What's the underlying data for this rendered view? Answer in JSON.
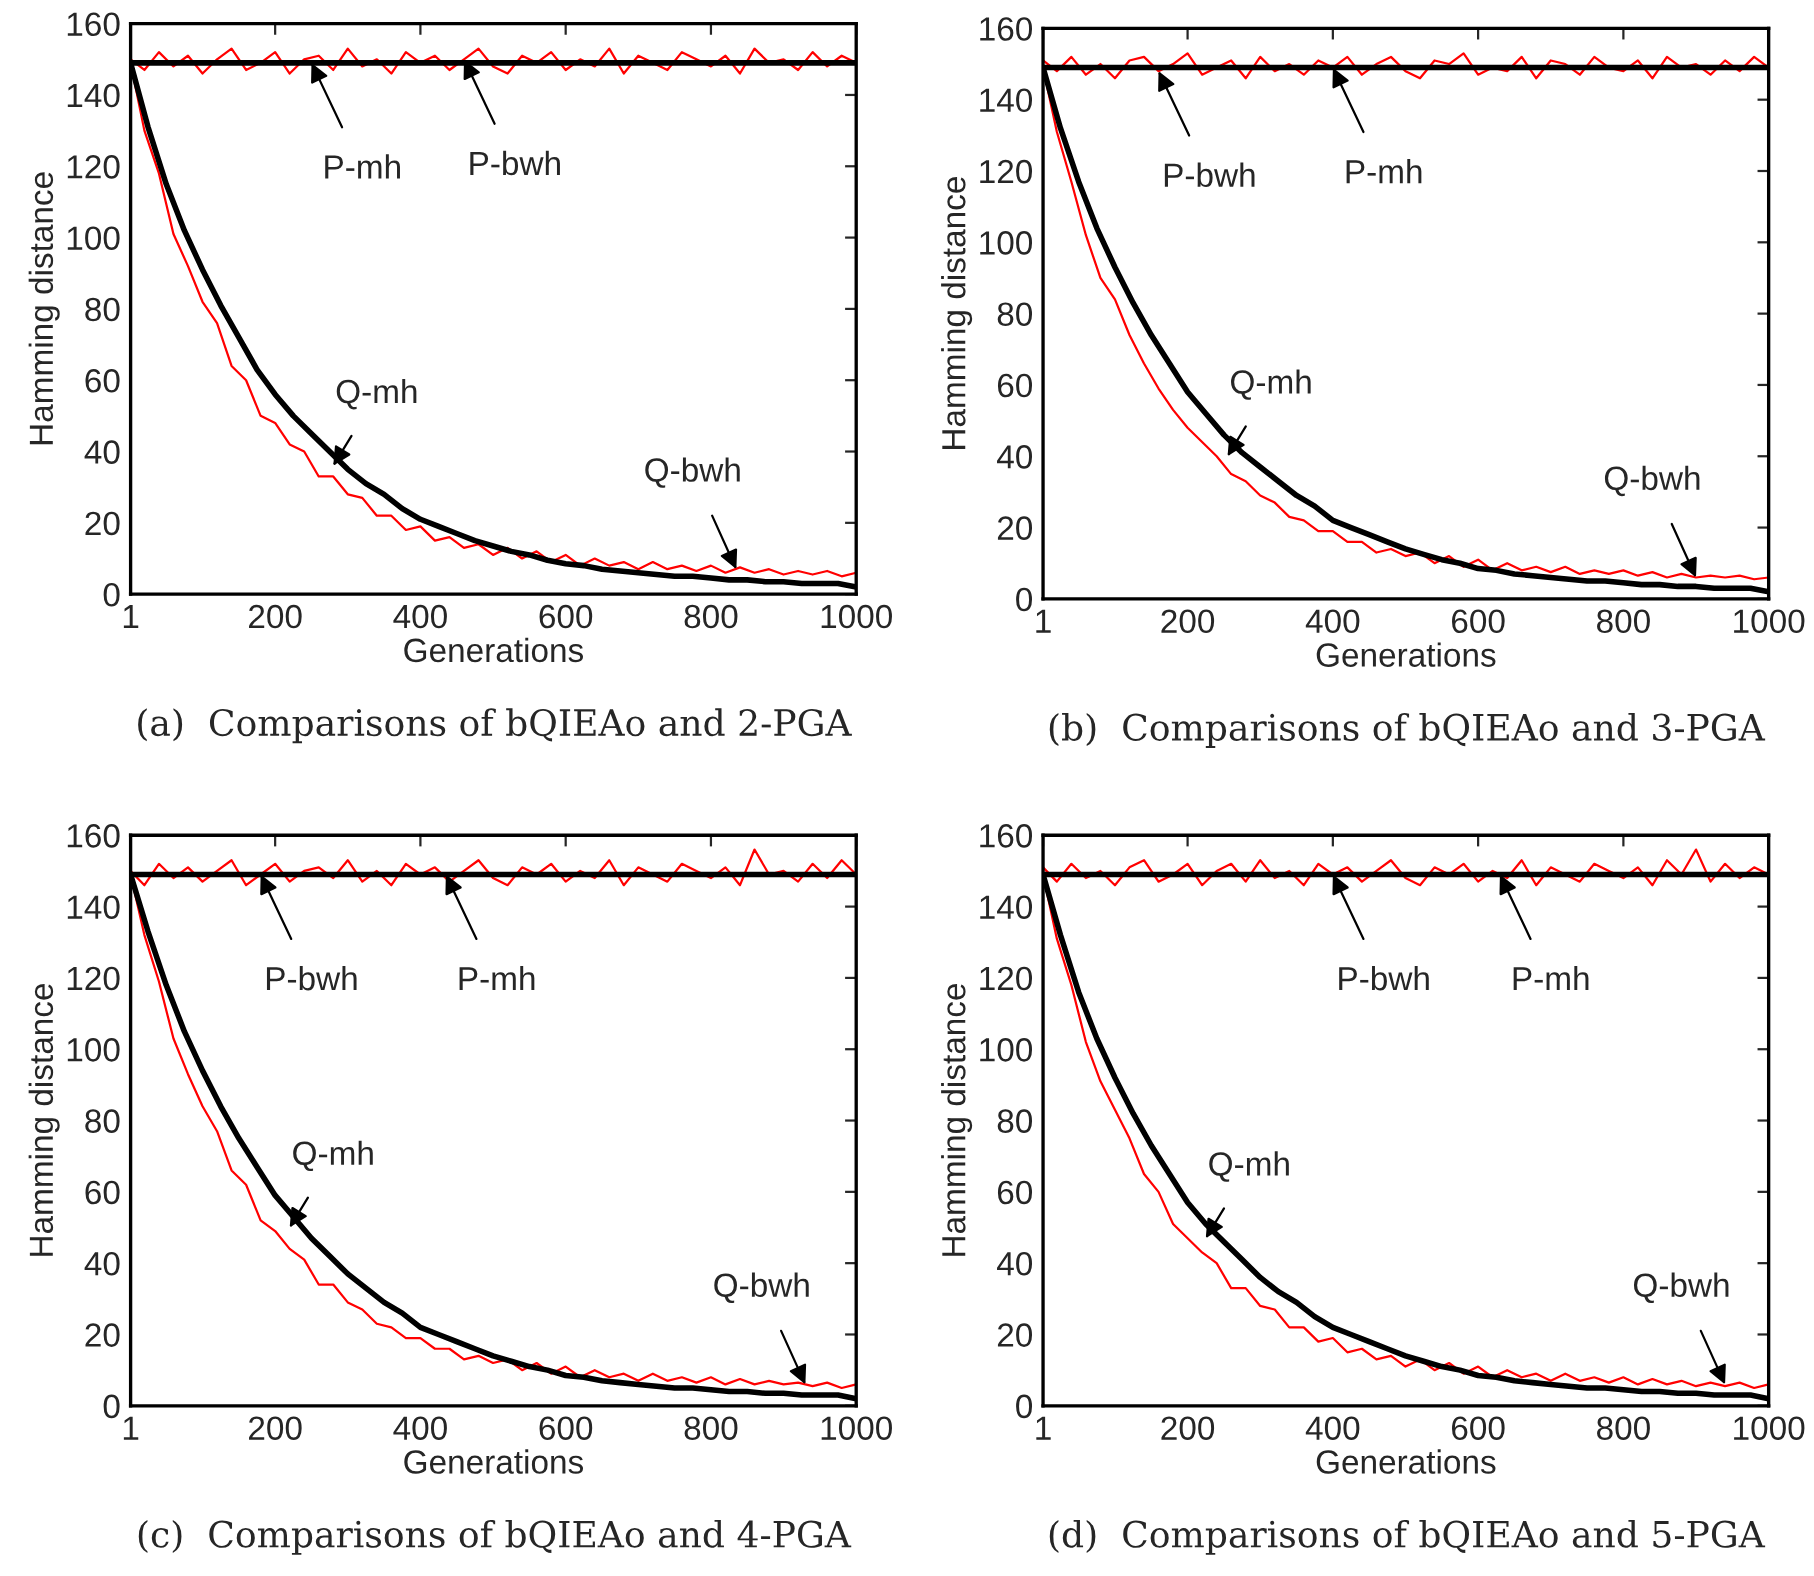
{
  "chart_data": [
    {
      "type": "line",
      "title": "(a)  Comparisons of bQIEAo and 2-PGA",
      "xlabel": "Generations",
      "ylabel": "Hamming distance",
      "xlim": [
        1,
        1000
      ],
      "ylim": [
        0,
        160
      ],
      "xticks": [
        1,
        200,
        400,
        600,
        800,
        1000
      ],
      "yticks": [
        0,
        20,
        40,
        60,
        80,
        100,
        120,
        140,
        160
      ],
      "series": [
        {
          "type": "line",
          "color": "#ff0000",
          "x": [
            1,
            20,
            40,
            60,
            80,
            100,
            120,
            140,
            160,
            180,
            200,
            220,
            240,
            260,
            280,
            300,
            320,
            340,
            360,
            380,
            400,
            420,
            440,
            460,
            480,
            500,
            520,
            540,
            560,
            580,
            600,
            620,
            640,
            660,
            680,
            700,
            720,
            740,
            760,
            780,
            800,
            820,
            840,
            860,
            880,
            900,
            920,
            940,
            960,
            980,
            1000
          ],
          "values": [
            150,
            147,
            152,
            148,
            151,
            146,
            150,
            153,
            147,
            149,
            152,
            146,
            150,
            151,
            147,
            153,
            148,
            150,
            146,
            152,
            149,
            151,
            147,
            150,
            153,
            148,
            146,
            151,
            149,
            152,
            147,
            150,
            148,
            153,
            146,
            151,
            149,
            147,
            152,
            150,
            148,
            151,
            146,
            153,
            149,
            150,
            147,
            152,
            148,
            151,
            149
          ]
        },
        {
          "type": "line",
          "color": "#000000",
          "x": [
            1,
            1000
          ],
          "values": [
            149,
            149
          ]
        },
        {
          "type": "line",
          "color": "#ff0000",
          "x": [
            1,
            20,
            40,
            60,
            80,
            100,
            120,
            140,
            160,
            180,
            200,
            220,
            240,
            260,
            280,
            300,
            320,
            340,
            360,
            380,
            400,
            420,
            440,
            460,
            480,
            500,
            520,
            540,
            560,
            580,
            600,
            620,
            640,
            660,
            680,
            700,
            720,
            740,
            760,
            780,
            800,
            820,
            840,
            860,
            880,
            900,
            920,
            940,
            960,
            980,
            1000
          ],
          "values": [
            149,
            130,
            118,
            101,
            92,
            82,
            76,
            64,
            60,
            50,
            48,
            42,
            40,
            33,
            33,
            28,
            27,
            22,
            22,
            18,
            19,
            15,
            16,
            13,
            14,
            11,
            13,
            10,
            12,
            9,
            11,
            8,
            10,
            8,
            9,
            7,
            9,
            7,
            8,
            6.5,
            8,
            6,
            7.5,
            6,
            7,
            5.5,
            6.5,
            5.5,
            6.5,
            5,
            6
          ]
        },
        {
          "type": "line",
          "color": "#000000",
          "x": [
            1,
            25,
            50,
            75,
            100,
            125,
            150,
            175,
            200,
            225,
            250,
            275,
            300,
            325,
            350,
            375,
            400,
            425,
            450,
            475,
            500,
            525,
            550,
            575,
            600,
            625,
            650,
            675,
            700,
            725,
            750,
            775,
            800,
            825,
            850,
            875,
            900,
            925,
            950,
            975,
            1000
          ],
          "values": [
            149,
            131,
            115,
            102,
            91,
            81,
            72,
            63,
            56,
            50,
            45,
            40,
            35,
            31,
            28,
            24,
            21,
            19,
            17,
            15,
            13.5,
            12,
            11,
            9.5,
            8.5,
            8,
            7,
            6.5,
            6,
            5.5,
            5,
            5,
            4.5,
            4,
            4,
            3.5,
            3.5,
            3,
            3,
            3,
            2
          ]
        }
      ],
      "annotations": [
        {
          "text": "P-mh",
          "x": 250,
          "y": 149
        },
        {
          "text": "P-bwh",
          "x": 460,
          "y": 150
        },
        {
          "text": "Q-mh",
          "x": 280,
          "y": 36
        },
        {
          "text": "Q-bwh",
          "x": 835,
          "y": 7
        }
      ]
    },
    {
      "type": "line",
      "title": "(b)  Comparisons of bQIEAo and 3-PGA",
      "xlabel": "Generations",
      "ylabel": "Hamming distance",
      "xlim": [
        1,
        1000
      ],
      "ylim": [
        0,
        160
      ],
      "xticks": [
        1,
        200,
        400,
        600,
        800,
        1000
      ],
      "yticks": [
        0,
        20,
        40,
        60,
        80,
        100,
        120,
        140,
        160
      ],
      "series": [
        {
          "type": "line",
          "color": "#ff0000",
          "x": [
            1,
            20,
            40,
            60,
            80,
            100,
            120,
            140,
            160,
            180,
            200,
            220,
            240,
            260,
            280,
            300,
            320,
            340,
            360,
            380,
            400,
            420,
            440,
            460,
            480,
            500,
            520,
            540,
            560,
            580,
            600,
            620,
            640,
            660,
            680,
            700,
            720,
            740,
            760,
            780,
            800,
            820,
            840,
            860,
            880,
            900,
            920,
            940,
            960,
            980,
            1000
          ],
          "values": [
            151,
            148,
            152,
            147,
            150,
            146,
            151,
            152,
            148,
            150,
            153,
            147,
            149,
            151,
            146,
            152,
            148,
            150,
            147,
            151,
            149,
            152,
            147,
            150,
            152,
            148,
            146,
            151,
            150,
            153,
            147,
            149,
            148,
            152,
            146,
            151,
            150,
            147,
            152,
            149,
            148,
            151,
            146,
            152,
            149,
            150,
            147,
            151,
            148,
            152,
            149
          ]
        },
        {
          "type": "line",
          "color": "#000000",
          "x": [
            1,
            1000
          ],
          "values": [
            149,
            149
          ]
        },
        {
          "type": "line",
          "color": "#ff0000",
          "x": [
            1,
            20,
            40,
            60,
            80,
            100,
            120,
            140,
            160,
            180,
            200,
            220,
            240,
            260,
            280,
            300,
            320,
            340,
            360,
            380,
            400,
            420,
            440,
            460,
            480,
            500,
            520,
            540,
            560,
            580,
            600,
            620,
            640,
            660,
            680,
            700,
            720,
            740,
            760,
            780,
            800,
            820,
            840,
            860,
            880,
            900,
            920,
            940,
            960,
            980,
            1000
          ],
          "values": [
            149,
            131,
            117,
            102,
            90,
            84,
            74,
            66,
            59,
            53,
            48,
            44,
            40,
            35,
            33,
            29,
            27,
            23,
            22,
            19,
            19,
            16,
            16,
            13,
            14,
            12,
            13,
            10,
            12,
            9,
            11,
            8,
            10,
            8,
            9,
            7.5,
            9,
            7,
            8,
            7,
            8,
            6.5,
            7.5,
            6,
            7,
            6,
            6.5,
            6,
            6.5,
            5.5,
            6
          ]
        },
        {
          "type": "line",
          "color": "#000000",
          "x": [
            1,
            25,
            50,
            75,
            100,
            125,
            150,
            175,
            200,
            225,
            250,
            275,
            300,
            325,
            350,
            375,
            400,
            425,
            450,
            475,
            500,
            525,
            550,
            575,
            600,
            625,
            650,
            675,
            700,
            725,
            750,
            775,
            800,
            825,
            850,
            875,
            900,
            925,
            950,
            975,
            1000
          ],
          "values": [
            149,
            132,
            117,
            104,
            93,
            83,
            74,
            66,
            58,
            52,
            46,
            41,
            37,
            33,
            29,
            26,
            22,
            20,
            18,
            16,
            14,
            12.5,
            11,
            10,
            8.5,
            8,
            7,
            6.5,
            6,
            5.5,
            5,
            5,
            4.5,
            4,
            4,
            3.5,
            3.5,
            3,
            3,
            3,
            2
          ]
        }
      ],
      "annotations": [
        {
          "text": "P-bwh",
          "x": 160,
          "y": 148
        },
        {
          "text": "P-mh",
          "x": 400,
          "y": 149
        },
        {
          "text": "Q-mh",
          "x": 255,
          "y": 40
        },
        {
          "text": "Q-bwh",
          "x": 900,
          "y": 6
        }
      ]
    },
    {
      "type": "line",
      "title": "(c)  Comparisons of bQIEAo and 4-PGA",
      "xlabel": "Generations",
      "ylabel": "Hamming distance",
      "xlim": [
        1,
        1000
      ],
      "ylim": [
        0,
        160
      ],
      "xticks": [
        1,
        200,
        400,
        600,
        800,
        1000
      ],
      "yticks": [
        0,
        20,
        40,
        60,
        80,
        100,
        120,
        140,
        160
      ],
      "series": [
        {
          "type": "line",
          "color": "#ff0000",
          "x": [
            1,
            20,
            40,
            60,
            80,
            100,
            120,
            140,
            160,
            180,
            200,
            220,
            240,
            260,
            280,
            300,
            320,
            340,
            360,
            380,
            400,
            420,
            440,
            460,
            480,
            500,
            520,
            540,
            560,
            580,
            600,
            620,
            640,
            660,
            680,
            700,
            720,
            740,
            760,
            780,
            800,
            820,
            840,
            860,
            880,
            900,
            920,
            940,
            960,
            980,
            1000
          ],
          "values": [
            150,
            146,
            152,
            148,
            151,
            147,
            150,
            153,
            146,
            149,
            152,
            147,
            150,
            151,
            148,
            153,
            147,
            150,
            146,
            152,
            149,
            151,
            147,
            150,
            153,
            148,
            146,
            151,
            149,
            152,
            147,
            150,
            148,
            153,
            146,
            151,
            149,
            147,
            152,
            150,
            148,
            151,
            146,
            156,
            149,
            150,
            147,
            152,
            148,
            153,
            149
          ]
        },
        {
          "type": "line",
          "color": "#000000",
          "x": [
            1,
            1000
          ],
          "values": [
            149,
            149
          ]
        },
        {
          "type": "line",
          "color": "#ff0000",
          "x": [
            1,
            20,
            40,
            60,
            80,
            100,
            120,
            140,
            160,
            180,
            200,
            220,
            240,
            260,
            280,
            300,
            320,
            340,
            360,
            380,
            400,
            420,
            440,
            460,
            480,
            500,
            520,
            540,
            560,
            580,
            600,
            620,
            640,
            660,
            680,
            700,
            720,
            740,
            760,
            780,
            800,
            820,
            840,
            860,
            880,
            900,
            920,
            940,
            960,
            980,
            1000
          ],
          "values": [
            149,
            132,
            119,
            103,
            93,
            84,
            77,
            66,
            62,
            52,
            49,
            44,
            41,
            34,
            34,
            29,
            27,
            23,
            22,
            19,
            19,
            16,
            16,
            13,
            14,
            12,
            13,
            10,
            12,
            9,
            11,
            8,
            10,
            8,
            9,
            7,
            9,
            7,
            8,
            6.5,
            8,
            6,
            7.5,
            6,
            7,
            6,
            6.5,
            5.5,
            6.5,
            5,
            6
          ]
        },
        {
          "type": "line",
          "color": "#000000",
          "x": [
            1,
            25,
            50,
            75,
            100,
            125,
            150,
            175,
            200,
            225,
            250,
            275,
            300,
            325,
            350,
            375,
            400,
            425,
            450,
            475,
            500,
            525,
            550,
            575,
            600,
            625,
            650,
            675,
            700,
            725,
            750,
            775,
            800,
            825,
            850,
            875,
            900,
            925,
            950,
            975,
            1000
          ],
          "values": [
            149,
            133,
            118,
            105,
            94,
            84,
            75,
            67,
            59,
            53,
            47,
            42,
            37,
            33,
            29,
            26,
            22,
            20,
            18,
            16,
            14,
            12.5,
            11,
            10,
            8.5,
            8,
            7,
            6.5,
            6,
            5.5,
            5,
            5,
            4.5,
            4,
            4,
            3.5,
            3.5,
            3,
            3,
            3,
            2
          ]
        }
      ],
      "annotations": [
        {
          "text": "P-bwh",
          "x": 180,
          "y": 149
        },
        {
          "text": "P-mh",
          "x": 435,
          "y": 149
        },
        {
          "text": "Q-mh",
          "x": 220,
          "y": 50
        },
        {
          "text": "Q-bwh",
          "x": 930,
          "y": 6
        }
      ]
    },
    {
      "type": "line",
      "title": "(d)  Comparisons of bQIEAo and 5-PGA",
      "xlabel": "Generations",
      "ylabel": "Hamming distance",
      "xlim": [
        1,
        1000
      ],
      "ylim": [
        0,
        160
      ],
      "xticks": [
        1,
        200,
        400,
        600,
        800,
        1000
      ],
      "yticks": [
        0,
        20,
        40,
        60,
        80,
        100,
        120,
        140,
        160
      ],
      "series": [
        {
          "type": "line",
          "color": "#ff0000",
          "x": [
            1,
            20,
            40,
            60,
            80,
            100,
            120,
            140,
            160,
            180,
            200,
            220,
            240,
            260,
            280,
            300,
            320,
            340,
            360,
            380,
            400,
            420,
            440,
            460,
            480,
            500,
            520,
            540,
            560,
            580,
            600,
            620,
            640,
            660,
            680,
            700,
            720,
            740,
            760,
            780,
            800,
            820,
            840,
            860,
            880,
            900,
            920,
            940,
            960,
            980,
            1000
          ],
          "values": [
            151,
            147,
            152,
            148,
            150,
            146,
            151,
            153,
            147,
            149,
            152,
            146,
            150,
            152,
            147,
            153,
            148,
            150,
            146,
            152,
            149,
            151,
            147,
            150,
            153,
            148,
            146,
            151,
            149,
            152,
            147,
            150,
            148,
            153,
            146,
            151,
            149,
            147,
            152,
            150,
            148,
            151,
            146,
            153,
            149,
            156,
            147,
            152,
            148,
            151,
            149
          ]
        },
        {
          "type": "line",
          "color": "#000000",
          "x": [
            1,
            1000
          ],
          "values": [
            149,
            149
          ]
        },
        {
          "type": "line",
          "color": "#ff0000",
          "x": [
            1,
            20,
            40,
            60,
            80,
            100,
            120,
            140,
            160,
            180,
            200,
            220,
            240,
            260,
            280,
            300,
            320,
            340,
            360,
            380,
            400,
            420,
            440,
            460,
            480,
            500,
            520,
            540,
            560,
            580,
            600,
            620,
            640,
            660,
            680,
            700,
            720,
            740,
            760,
            780,
            800,
            820,
            840,
            860,
            880,
            900,
            920,
            940,
            960,
            980,
            1000
          ],
          "values": [
            149,
            131,
            118,
            102,
            91,
            83,
            75,
            65,
            60,
            51,
            47,
            43,
            40,
            33,
            33,
            28,
            27,
            22,
            22,
            18,
            19,
            15,
            16,
            13,
            14,
            11,
            13,
            10,
            12,
            9,
            11,
            8,
            10,
            8,
            9,
            7,
            9,
            7,
            8,
            6.5,
            8,
            6,
            7.5,
            6,
            7,
            5.5,
            6.5,
            5.5,
            6.5,
            5,
            6
          ]
        },
        {
          "type": "line",
          "color": "#000000",
          "x": [
            1,
            25,
            50,
            75,
            100,
            125,
            150,
            175,
            200,
            225,
            250,
            275,
            300,
            325,
            350,
            375,
            400,
            425,
            450,
            475,
            500,
            525,
            550,
            575,
            600,
            625,
            650,
            675,
            700,
            725,
            750,
            775,
            800,
            825,
            850,
            875,
            900,
            925,
            950,
            975,
            1000
          ],
          "values": [
            149,
            132,
            116,
            103,
            92,
            82,
            73,
            65,
            57,
            51,
            46,
            41,
            36,
            32,
            29,
            25,
            22,
            20,
            18,
            16,
            14,
            12.5,
            11,
            10,
            8.5,
            8,
            7,
            6.5,
            6,
            5.5,
            5,
            5,
            4.5,
            4,
            4,
            3.5,
            3.5,
            3,
            3,
            3,
            2
          ]
        }
      ],
      "annotations": [
        {
          "text": "P-bwh",
          "x": 400,
          "y": 149
        },
        {
          "text": "P-mh",
          "x": 630,
          "y": 149
        },
        {
          "text": "Q-mh",
          "x": 225,
          "y": 47
        },
        {
          "text": "Q-bwh",
          "x": 940,
          "y": 6
        }
      ]
    }
  ]
}
